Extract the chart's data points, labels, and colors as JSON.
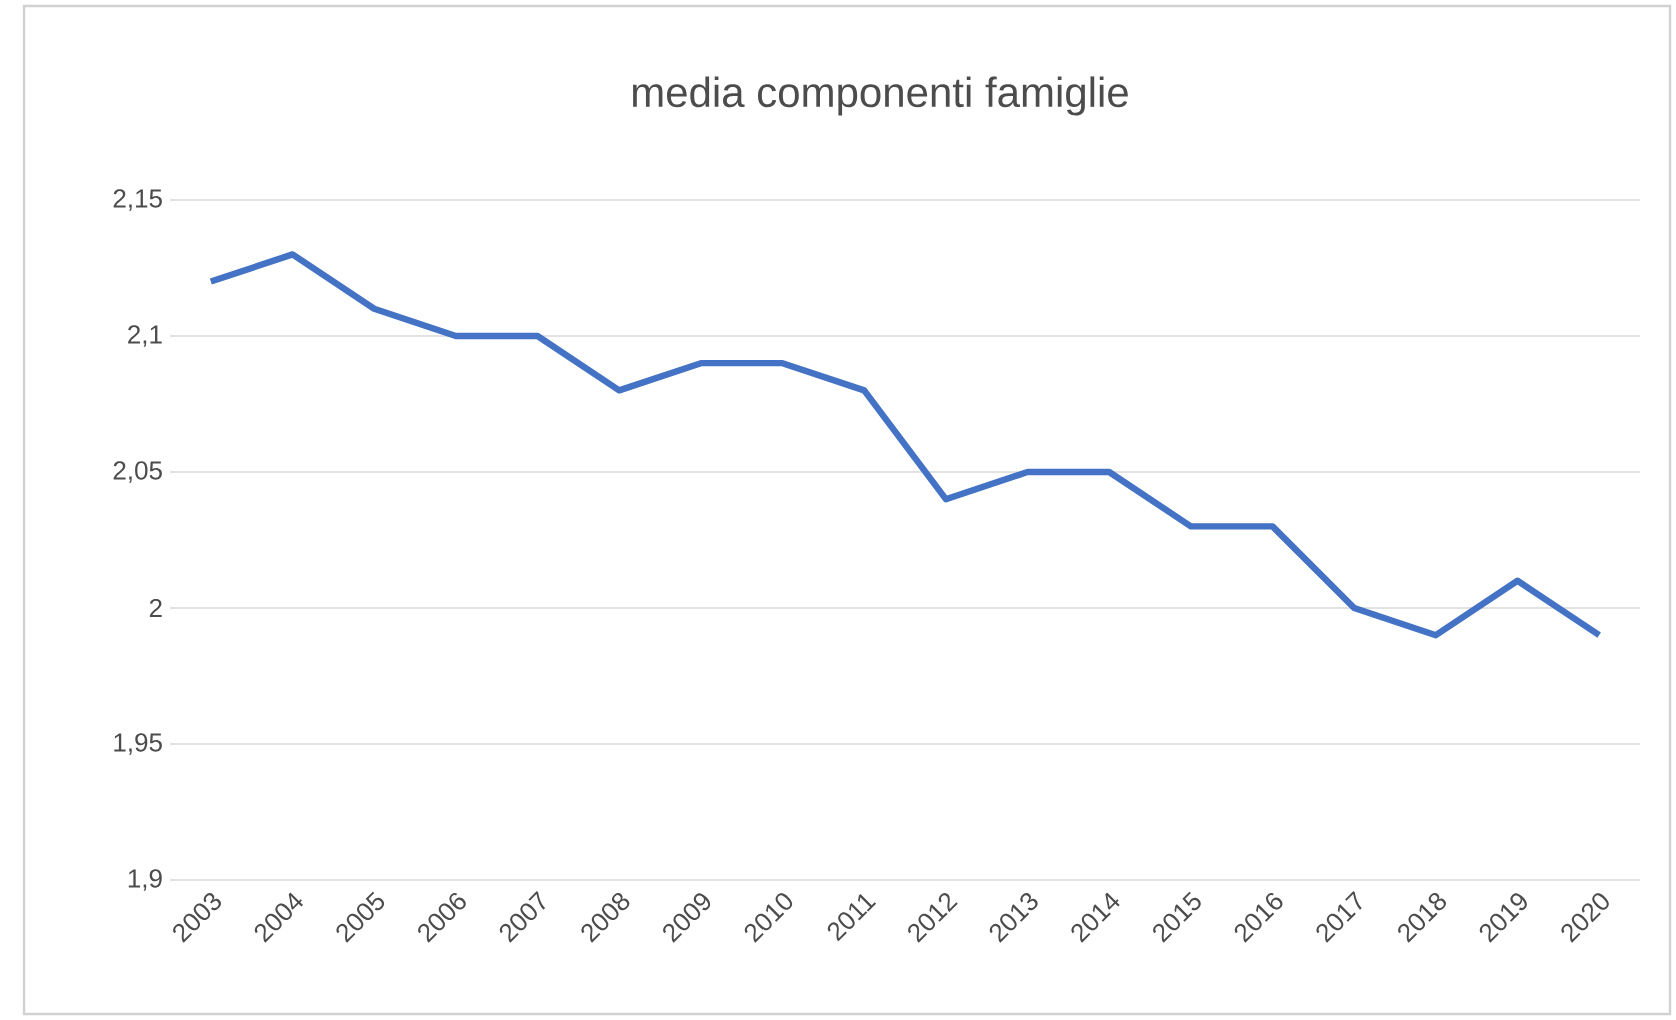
{
  "chart_data": {
    "type": "line",
    "title": "media componenti famiglie",
    "categories": [
      "2003",
      "2004",
      "2005",
      "2006",
      "2007",
      "2008",
      "2009",
      "2010",
      "2011",
      "2012",
      "2013",
      "2014",
      "2015",
      "2016",
      "2017",
      "2018",
      "2019",
      "2020"
    ],
    "series": [
      {
        "color": "#4472c4",
        "values": [
          2.12,
          2.13,
          2.11,
          2.1,
          2.1,
          2.08,
          2.09,
          2.09,
          2.08,
          2.04,
          2.05,
          2.05,
          2.03,
          2.03,
          2.0,
          1.99,
          2.01,
          1.99
        ]
      }
    ],
    "ylim": [
      1.9,
      2.15
    ],
    "yticks": [
      {
        "value": 1.9,
        "label": "1,9"
      },
      {
        "value": 1.95,
        "label": "1,95"
      },
      2,
      {
        "value": 2.05,
        "label": "2,05"
      },
      {
        "value": 2.1,
        "label": "2,1"
      },
      {
        "value": 2.15,
        "label": "2,15"
      }
    ],
    "grid": "y"
  }
}
